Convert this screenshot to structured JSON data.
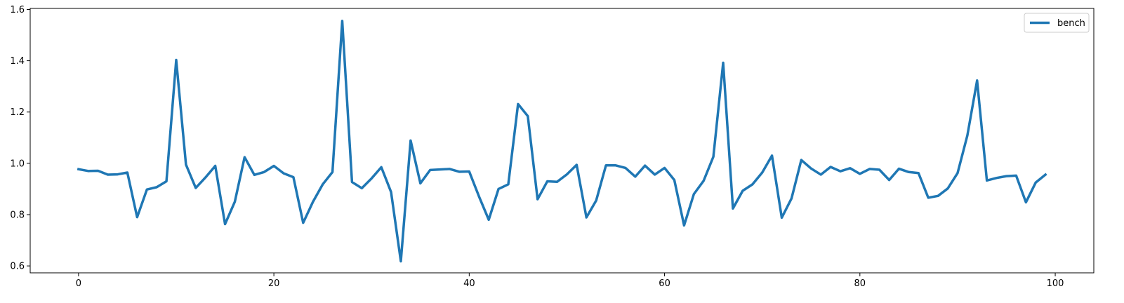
{
  "chart_data": {
    "type": "line",
    "title": "",
    "xlabel": "",
    "ylabel": "",
    "xlim": [
      -4.95,
      103.95
    ],
    "ylim": [
      0.573,
      1.604
    ],
    "x_ticks": [
      0,
      20,
      40,
      60,
      80,
      100
    ],
    "y_ticks": [
      0.6,
      0.8,
      1.0,
      1.2,
      1.4,
      1.6
    ],
    "x_tick_labels": [
      "0",
      "20",
      "40",
      "60",
      "80",
      "100"
    ],
    "y_tick_labels": [
      "0.6",
      "0.8",
      "1.0",
      "1.2",
      "1.4",
      "1.6"
    ],
    "grid": false,
    "legend_position": "top-right",
    "line_color": "#1f77b4",
    "series": [
      {
        "name": "bench",
        "values": [
          0.977,
          0.97,
          0.971,
          0.956,
          0.957,
          0.964,
          0.79,
          0.898,
          0.907,
          0.93,
          1.403,
          0.995,
          0.904,
          0.945,
          0.99,
          0.763,
          0.85,
          1.024,
          0.955,
          0.966,
          0.99,
          0.961,
          0.946,
          0.768,
          0.85,
          0.918,
          0.966,
          1.555,
          0.927,
          0.903,
          0.941,
          0.985,
          0.888,
          0.618,
          1.089,
          0.922,
          0.974,
          0.976,
          0.978,
          0.967,
          0.968,
          0.871,
          0.78,
          0.9,
          0.918,
          1.231,
          1.184,
          0.86,
          0.93,
          0.928,
          0.957,
          0.994,
          0.789,
          0.855,
          0.992,
          0.992,
          0.982,
          0.948,
          0.991,
          0.956,
          0.982,
          0.935,
          0.758,
          0.88,
          0.932,
          1.026,
          1.392,
          0.824,
          0.893,
          0.918,
          0.964,
          1.03,
          0.788,
          0.863,
          1.013,
          0.98,
          0.956,
          0.986,
          0.969,
          0.981,
          0.959,
          0.978,
          0.975,
          0.935,
          0.979,
          0.966,
          0.962,
          0.866,
          0.873,
          0.902,
          0.962,
          1.108,
          1.323,
          0.933,
          0.943,
          0.95,
          0.952,
          0.848,
          0.925,
          0.956
        ]
      }
    ]
  }
}
